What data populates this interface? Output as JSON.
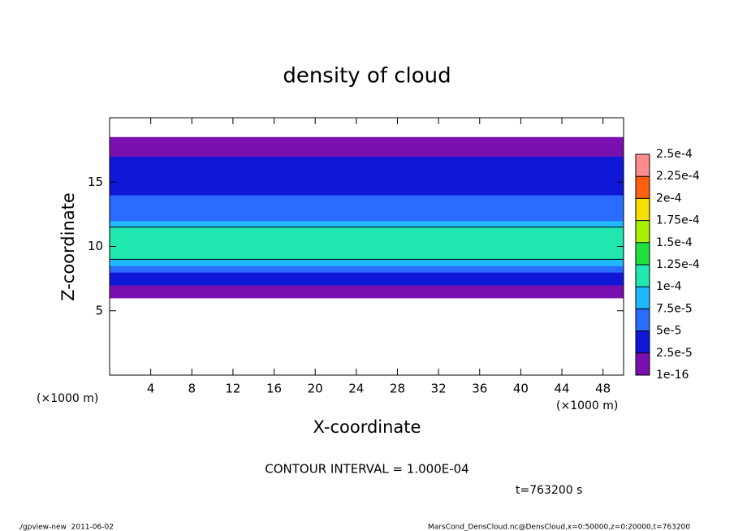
{
  "chart_data": {
    "type": "profile-heatmap",
    "title": "density of cloud",
    "xlabel": "X-coordinate",
    "ylabel": "Z-coordinate",
    "x_unit_label": "(×1000 m)",
    "y_unit_label": "(×1000 m)",
    "xlim": [
      0,
      50
    ],
    "xticks": [
      4,
      8,
      12,
      16,
      20,
      24,
      28,
      32,
      36,
      40,
      44,
      48
    ],
    "ylim": [
      0,
      20
    ],
    "yticks": [
      5,
      10,
      15
    ],
    "z": [
      6,
      6.5,
      7,
      7.5,
      8,
      8.5,
      9,
      9.5,
      10,
      10.5,
      11,
      11.5,
      12,
      12.5,
      13,
      13.5,
      14,
      14.5,
      15,
      15.5,
      16,
      16.5,
      17,
      17.5,
      18
    ],
    "values": [
      1e-05,
      1.5e-05,
      3e-05,
      4e-05,
      6e-05,
      8e-05,
      0.000105,
      0.000115,
      0.00012,
      0.000115,
      0.000105,
      8.5e-05,
      7e-05,
      6e-05,
      5.5e-05,
      5e-05,
      4.5e-05,
      4.5e-05,
      4.5e-05,
      4e-05,
      3.5e-05,
      3e-05,
      2e-05,
      1e-05,
      1e-05
    ],
    "contour_level": 0.0001,
    "contour_label": "CONTOUR INTERVAL = 1.000E-04",
    "colorbar": {
      "ticks": [
        {
          "value": 1e-16,
          "label": "1e-16"
        },
        {
          "value": 2.5e-05,
          "label": "2.5e-5"
        },
        {
          "value": 5e-05,
          "label": "5e-5"
        },
        {
          "value": 7.5e-05,
          "label": "7.5e-5"
        },
        {
          "value": 0.0001,
          "label": "1e-4"
        },
        {
          "value": 0.000125,
          "label": "1.25e-4"
        },
        {
          "value": 0.00015,
          "label": "1.5e-4"
        },
        {
          "value": 0.000175,
          "label": "1.75e-4"
        },
        {
          "value": 0.0002,
          "label": "2e-4"
        },
        {
          "value": 0.000225,
          "label": "2.25e-4"
        },
        {
          "value": 0.00025,
          "label": "2.5e-4"
        }
      ],
      "colors": [
        "#7a10b0",
        "#1018d8",
        "#2a6cff",
        "#20b8ff",
        "#20e8b0",
        "#20e040",
        "#a8f000",
        "#f4e000",
        "#ff6010",
        "#ff8c8c"
      ]
    },
    "time_label": "t=763200 s",
    "footer_left": "./gpview-new  2011-06-02",
    "footer_right": "MarsCond_DensCloud.nc@DensCloud,x=0:50000,z=0:20000,t=763200"
  }
}
